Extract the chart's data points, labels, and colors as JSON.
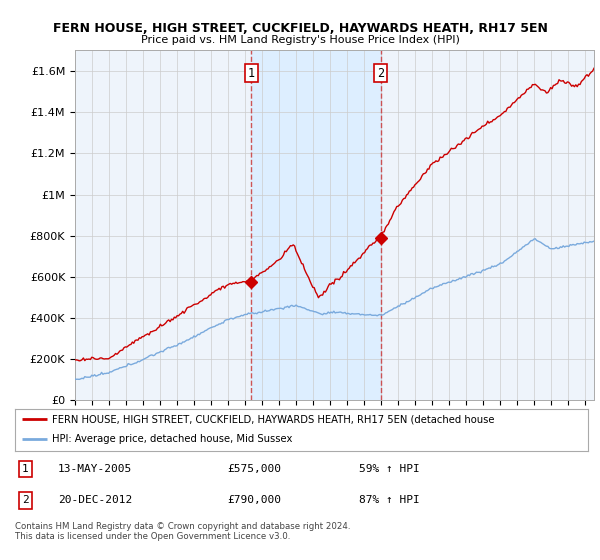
{
  "title": "FERN HOUSE, HIGH STREET, CUCKFIELD, HAYWARDS HEATH, RH17 5EN",
  "subtitle": "Price paid vs. HM Land Registry's House Price Index (HPI)",
  "ylim": [
    0,
    1700000
  ],
  "yticks": [
    0,
    200000,
    400000,
    600000,
    800000,
    1000000,
    1200000,
    1400000,
    1600000
  ],
  "ytick_labels": [
    "£0",
    "£200K",
    "£400K",
    "£600K",
    "£800K",
    "£1M",
    "£1.2M",
    "£1.4M",
    "£1.6M"
  ],
  "xlim_start": 1995.0,
  "xlim_end": 2025.5,
  "sale1_x": 2005.36,
  "sale1_y": 575000,
  "sale1_label": "1",
  "sale1_date": "13-MAY-2005",
  "sale1_price": "£575,000",
  "sale1_hpi": "59% ↑ HPI",
  "sale2_x": 2012.97,
  "sale2_y": 790000,
  "sale2_label": "2",
  "sale2_date": "20-DEC-2012",
  "sale2_price": "£790,000",
  "sale2_hpi": "87% ↑ HPI",
  "legend_line1": "FERN HOUSE, HIGH STREET, CUCKFIELD, HAYWARDS HEATH, RH17 5EN (detached house",
  "legend_line2": "HPI: Average price, detached house, Mid Sussex",
  "footer": "Contains HM Land Registry data © Crown copyright and database right 2024.\nThis data is licensed under the Open Government Licence v3.0.",
  "line_color_red": "#cc0000",
  "line_color_blue": "#7aaadd",
  "shade_color": "#ddeeff",
  "bg_color": "#eef4fb",
  "plot_bg": "#ffffff",
  "grid_color": "#cccccc",
  "dashed_color": "#cc4444"
}
